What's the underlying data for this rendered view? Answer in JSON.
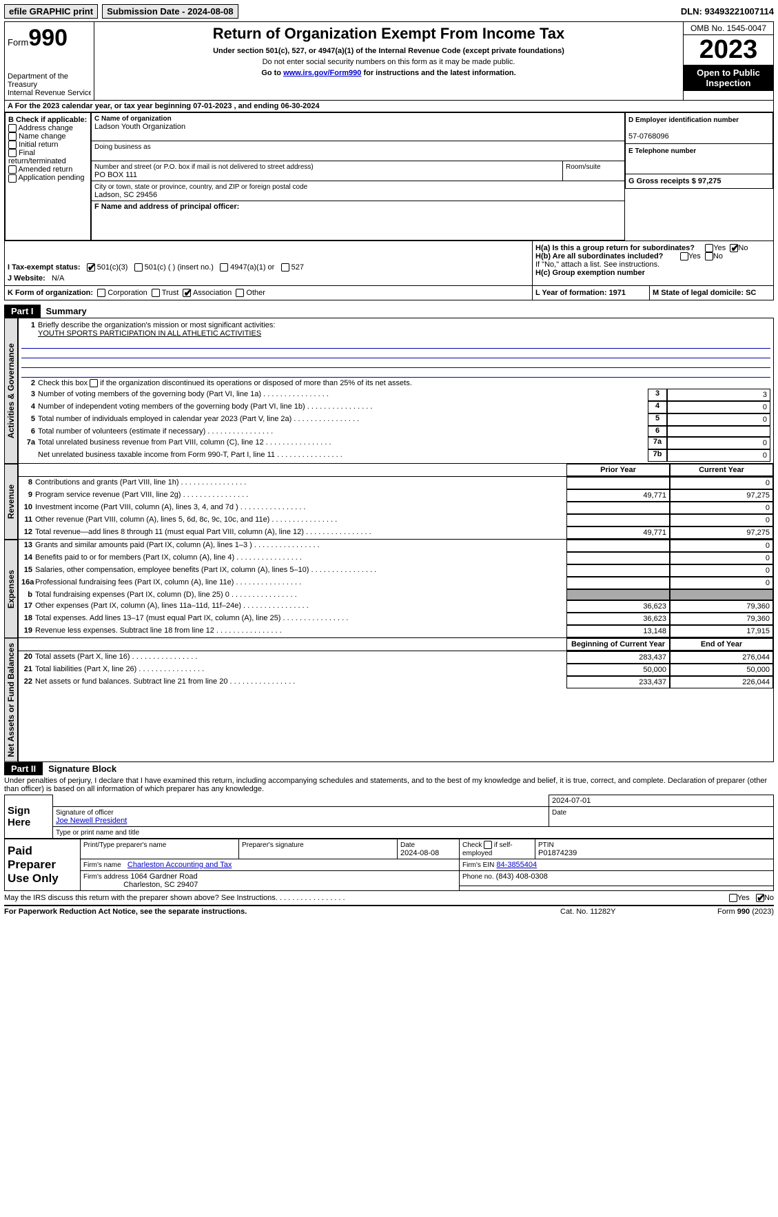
{
  "topbar": {
    "efile": "efile GRAPHIC print",
    "submission": "Submission Date - 2024-08-08",
    "dln": "DLN: 93493221007114"
  },
  "header": {
    "form_label": "Form",
    "form_number": "990",
    "dept": "Department of the Treasury",
    "irs": "Internal Revenue Service",
    "title": "Return of Organization Exempt From Income Tax",
    "subtitle": "Under section 501(c), 527, or 4947(a)(1) of the Internal Revenue Code (except private foundations)",
    "warn": "Do not enter social security numbers on this form as it may be made public.",
    "goto": "Go to ",
    "goto_link": "www.irs.gov/Form990",
    "goto_after": " for instructions and the latest information.",
    "omb": "OMB No. 1545-0047",
    "year": "2023",
    "open": "Open to Public Inspection"
  },
  "sectionA": {
    "line": "A For the 2023 calendar year, or tax year beginning 07-01-2023    , and ending 06-30-2024"
  },
  "sectionB": {
    "hdr": "B Check if applicable:",
    "items": [
      "Address change",
      "Name change",
      "Initial return",
      "Final return/terminated",
      "Amended return",
      "Application pending"
    ]
  },
  "sectionC": {
    "name_label": "C Name of organization",
    "name": "Ladson Youth Organization",
    "dba_label": "Doing business as",
    "street_label": "Number and street (or P.O. box if mail is not delivered to street address)",
    "room_label": "Room/suite",
    "street": "PO BOX 111",
    "city_label": "City or town, state or province, country, and ZIP or foreign postal code",
    "city": "Ladson, SC  29456"
  },
  "sectionD": {
    "label": "D Employer identification number",
    "value": "57-0768096"
  },
  "sectionE": {
    "label": "E Telephone number"
  },
  "sectionF": {
    "label": "F  Name and address of principal officer:"
  },
  "sectionG": {
    "label": "G Gross receipts $ 97,275"
  },
  "sectionH": {
    "ha": "H(a)  Is this a group return for subordinates?",
    "hb": "H(b)  Are all subordinates included?",
    "hb_note": "If \"No,\" attach a list. See instructions.",
    "hc": "H(c)  Group exemption number",
    "yes": "Yes",
    "no": "No"
  },
  "sectionI": {
    "label": "I   Tax-exempt status:",
    "opt1": "501(c)(3)",
    "opt2": "501(c) (  ) (insert no.)",
    "opt3": "4947(a)(1) or",
    "opt4": "527"
  },
  "sectionJ": {
    "label": "J   Website:",
    "value": "N/A"
  },
  "sectionK": {
    "label": "K Form of organization:",
    "opts": [
      "Corporation",
      "Trust",
      "Association",
      "Other"
    ]
  },
  "sectionL": {
    "label": "L Year of formation: 1971"
  },
  "sectionM": {
    "label": "M State of legal domicile: SC"
  },
  "part1": {
    "label": "Part I",
    "title": "Summary",
    "side_ag": "Activities & Governance",
    "side_rev": "Revenue",
    "side_exp": "Expenses",
    "side_net": "Net Assets or Fund Balances",
    "l1_label": "Briefly describe the organization's mission or most significant activities:",
    "l1_value": "YOUTH SPORTS PARTICIPATION IN ALL ATHLETIC ACTIVITIES",
    "l2": "Check this box       if the organization discontinued its operations or disposed of more than 25% of its net assets.",
    "rows_top": [
      {
        "n": "3",
        "t": "Number of voting members of the governing body (Part VI, line 1a)",
        "box": "3",
        "v": "3"
      },
      {
        "n": "4",
        "t": "Number of independent voting members of the governing body (Part VI, line 1b)",
        "box": "4",
        "v": "0"
      },
      {
        "n": "5",
        "t": "Total number of individuals employed in calendar year 2023 (Part V, line 2a)",
        "box": "5",
        "v": "0"
      },
      {
        "n": "6",
        "t": "Total number of volunteers (estimate if necessary)",
        "box": "6",
        "v": ""
      },
      {
        "n": "7a",
        "t": "Total unrelated business revenue from Part VIII, column (C), line 12",
        "box": "7a",
        "v": "0"
      },
      {
        "n": "",
        "t": "Net unrelated business taxable income from Form 990-T, Part I, line 11",
        "box": "7b",
        "v": "0"
      }
    ],
    "col_prior": "Prior Year",
    "col_current": "Current Year",
    "rows_rev": [
      {
        "n": "8",
        "t": "Contributions and grants (Part VIII, line 1h)",
        "p": "",
        "c": "0"
      },
      {
        "n": "9",
        "t": "Program service revenue (Part VIII, line 2g)",
        "p": "49,771",
        "c": "97,275"
      },
      {
        "n": "10",
        "t": "Investment income (Part VIII, column (A), lines 3, 4, and 7d )",
        "p": "",
        "c": "0"
      },
      {
        "n": "11",
        "t": "Other revenue (Part VIII, column (A), lines 5, 6d, 8c, 9c, 10c, and 11e)",
        "p": "",
        "c": "0"
      },
      {
        "n": "12",
        "t": "Total revenue—add lines 8 through 11 (must equal Part VIII, column (A), line 12)",
        "p": "49,771",
        "c": "97,275"
      }
    ],
    "rows_exp": [
      {
        "n": "13",
        "t": "Grants and similar amounts paid (Part IX, column (A), lines 1–3 )",
        "p": "",
        "c": "0"
      },
      {
        "n": "14",
        "t": "Benefits paid to or for members (Part IX, column (A), line 4)",
        "p": "",
        "c": "0"
      },
      {
        "n": "15",
        "t": "Salaries, other compensation, employee benefits (Part IX, column (A), lines 5–10)",
        "p": "",
        "c": "0"
      },
      {
        "n": "16a",
        "t": "Professional fundraising fees (Part IX, column (A), line 11e)",
        "p": "",
        "c": "0"
      },
      {
        "n": "b",
        "t": "Total fundraising expenses (Part IX, column (D), line 25) 0",
        "p": "GRAY",
        "c": "GRAY"
      },
      {
        "n": "17",
        "t": "Other expenses (Part IX, column (A), lines 11a–11d, 11f–24e)",
        "p": "36,623",
        "c": "79,360"
      },
      {
        "n": "18",
        "t": "Total expenses. Add lines 13–17 (must equal Part IX, column (A), line 25)",
        "p": "36,623",
        "c": "79,360"
      },
      {
        "n": "19",
        "t": "Revenue less expenses. Subtract line 18 from line 12",
        "p": "13,148",
        "c": "17,915"
      }
    ],
    "col_begin": "Beginning of Current Year",
    "col_end": "End of Year",
    "rows_net": [
      {
        "n": "20",
        "t": "Total assets (Part X, line 16)",
        "p": "283,437",
        "c": "276,044"
      },
      {
        "n": "21",
        "t": "Total liabilities (Part X, line 26)",
        "p": "50,000",
        "c": "50,000"
      },
      {
        "n": "22",
        "t": "Net assets or fund balances. Subtract line 21 from line 20",
        "p": "233,437",
        "c": "226,044"
      }
    ]
  },
  "part2": {
    "label": "Part II",
    "title": "Signature Block",
    "perjury": "Under penalties of perjury, I declare that I have examined this return, including accompanying schedules and statements, and to the best of my knowledge and belief, it is true, correct, and complete. Declaration of preparer (other than officer) is based on all information of which preparer has any knowledge.",
    "sign_here": "Sign Here",
    "sig_date": "2024-07-01",
    "sig_officer": "Signature of officer",
    "sig_name": "Joe Newell President",
    "sig_type": "Type or print name and title",
    "sig_date_label": "Date",
    "paid": "Paid Preparer Use Only",
    "prep_name_label": "Print/Type preparer's name",
    "prep_sig_label": "Preparer's signature",
    "prep_date_label": "Date",
    "prep_date": "2024-08-08",
    "prep_check": "Check        if self-employed",
    "ptin_label": "PTIN",
    "ptin": "P01874239",
    "firm_name_label": "Firm's name",
    "firm_name": "Charleston Accounting and Tax",
    "firm_ein_label": "Firm's EIN",
    "firm_ein": "84-3855404",
    "firm_addr_label": "Firm's address",
    "firm_addr1": "1064 Gardner Road",
    "firm_addr2": "Charleston, SC  29407",
    "firm_phone_label": "Phone no.",
    "firm_phone": "(843) 408-0308",
    "discuss": "May the IRS discuss this return with the preparer shown above? See Instructions.",
    "yes": "Yes",
    "no": "No"
  },
  "footer": {
    "pra": "For Paperwork Reduction Act Notice, see the separate instructions.",
    "cat": "Cat. No. 11282Y",
    "form": "Form 990 (2023)"
  }
}
